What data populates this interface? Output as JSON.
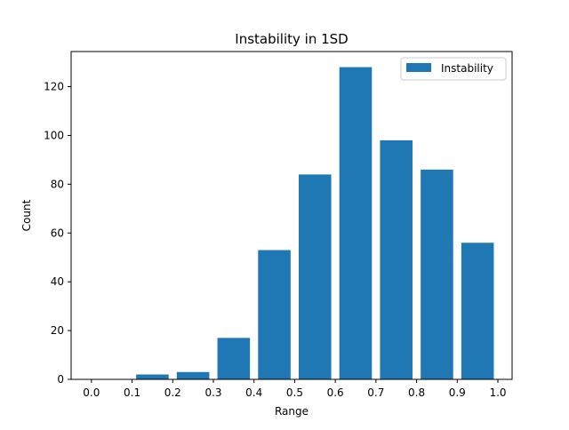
{
  "chart_data": {
    "type": "bar",
    "title": "Instability in 1SD",
    "xlabel": "Range",
    "ylabel": "Count",
    "bins": [
      [
        0.0,
        0.1
      ],
      [
        0.1,
        0.2
      ],
      [
        0.2,
        0.3
      ],
      [
        0.3,
        0.4
      ],
      [
        0.4,
        0.5
      ],
      [
        0.5,
        0.6
      ],
      [
        0.6,
        0.7
      ],
      [
        0.7,
        0.8
      ],
      [
        0.8,
        0.9
      ],
      [
        0.9,
        1.0
      ]
    ],
    "series": [
      {
        "name": "Instability",
        "color": "#1f77b4",
        "values": [
          0,
          2,
          3,
          17,
          53,
          84,
          128,
          98,
          86,
          56
        ]
      }
    ],
    "x_ticks": [
      "0.0",
      "0.1",
      "0.2",
      "0.3",
      "0.4",
      "0.5",
      "0.6",
      "0.7",
      "0.8",
      "0.9",
      "1.0"
    ],
    "y_ticks": [
      "0",
      "20",
      "40",
      "60",
      "80",
      "100",
      "120"
    ],
    "xlim": [
      -0.05,
      1.035
    ],
    "ylim": [
      0,
      134.4
    ],
    "grid": false,
    "legend_position": "top-right"
  }
}
